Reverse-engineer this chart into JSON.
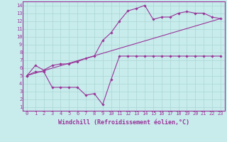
{
  "background_color": "#c8ecec",
  "grid_color": "#b0d8d8",
  "line_color": "#993399",
  "marker_color": "#993399",
  "xlabel": "Windchill (Refroidissement éolien,°C)",
  "xlim": [
    -0.5,
    23.5
  ],
  "ylim": [
    0.5,
    14.5
  ],
  "xticks": [
    0,
    1,
    2,
    3,
    4,
    5,
    6,
    7,
    8,
    9,
    10,
    11,
    12,
    13,
    14,
    15,
    16,
    17,
    18,
    19,
    20,
    21,
    22,
    23
  ],
  "yticks": [
    1,
    2,
    3,
    4,
    5,
    6,
    7,
    8,
    9,
    10,
    11,
    12,
    13,
    14
  ],
  "line1_x": [
    0,
    1,
    2,
    3,
    4,
    5,
    6,
    7,
    8,
    9,
    10,
    11,
    12,
    13,
    14,
    15,
    16,
    17,
    18,
    19,
    20,
    21,
    22,
    23
  ],
  "line1_y": [
    5.0,
    6.3,
    5.7,
    6.3,
    6.5,
    6.5,
    6.8,
    7.2,
    7.5,
    9.5,
    10.5,
    12.0,
    13.3,
    13.6,
    14.0,
    12.2,
    12.5,
    12.5,
    13.0,
    13.2,
    13.0,
    13.0,
    12.5,
    12.3
  ],
  "line2_x": [
    0,
    1,
    2,
    3,
    4,
    5,
    6,
    7,
    8,
    9,
    10,
    11,
    12,
    13,
    14,
    15,
    16,
    17,
    18,
    19,
    20,
    21,
    22,
    23
  ],
  "line2_y": [
    5.0,
    5.5,
    5.5,
    3.5,
    3.5,
    3.5,
    3.5,
    2.5,
    2.7,
    1.3,
    4.5,
    7.5,
    7.5,
    7.5,
    7.5,
    7.5,
    7.5,
    7.5,
    7.5,
    7.5,
    7.5,
    7.5,
    7.5,
    7.5
  ],
  "line3_x": [
    0,
    23
  ],
  "line3_y": [
    5.0,
    12.3
  ],
  "tick_fontsize": 5.0,
  "label_fontsize": 6.0
}
